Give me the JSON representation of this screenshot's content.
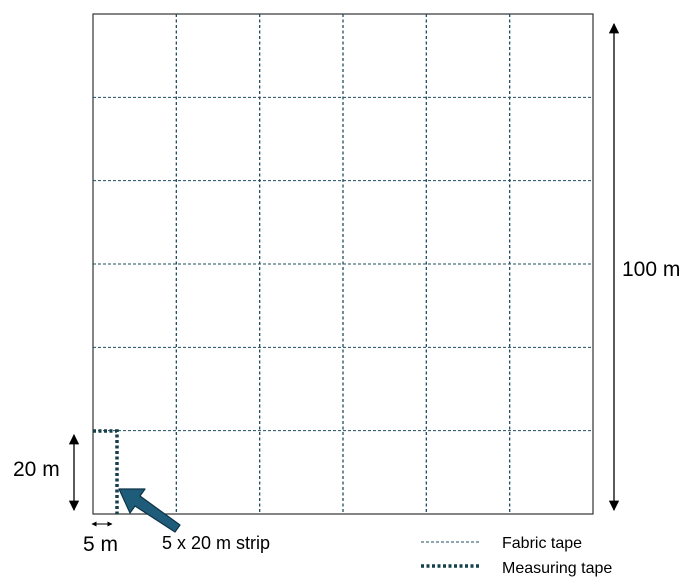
{
  "colors": {
    "background": "#ffffff",
    "outline": "#333333",
    "fabric_tape": "#1f4e5f",
    "measuring_tape": "#163f4c",
    "arrow_fill": "#1f5c7a",
    "arrow_stroke": "#0f3347",
    "dimension": "#000000"
  },
  "plot": {
    "grid_cells": 6
  },
  "labels": {
    "total_side": "100 m",
    "strip_height": "20 m",
    "strip_width": "5 m",
    "strip_caption": "5 x 20 m strip"
  },
  "legend": {
    "fabric_tape": "Fabric tape",
    "measuring_tape": "Measuring tape"
  }
}
